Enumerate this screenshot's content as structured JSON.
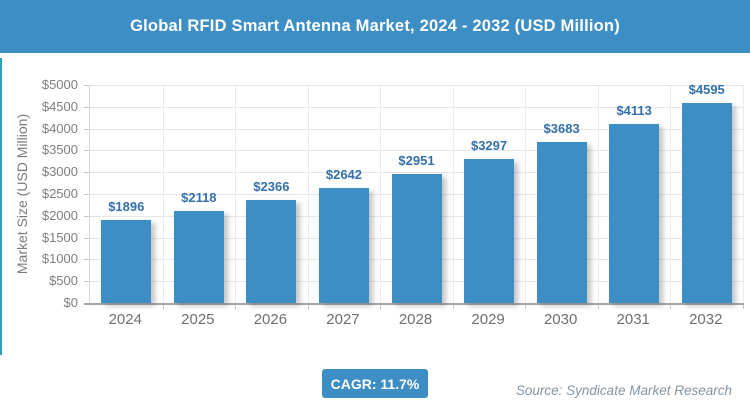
{
  "header": {
    "title": "Global RFID Smart Antenna Market, 2024 - 2032 (USD Million)"
  },
  "chart_data": {
    "type": "bar",
    "title": "Global RFID Smart Antenna Market, 2024 - 2032 (USD Million)",
    "categories": [
      "2024",
      "2025",
      "2026",
      "2027",
      "2028",
      "2029",
      "2030",
      "2031",
      "2032"
    ],
    "values": [
      1896,
      2118,
      2366,
      2642,
      2951,
      3297,
      3683,
      4113,
      4595
    ],
    "value_labels": [
      "$1896",
      "$2118",
      "$2366",
      "$2642",
      "$2951",
      "$3297",
      "$3683",
      "$4113",
      "$4595"
    ],
    "xlabel": "",
    "ylabel": "Market Size (USD Million)",
    "ylim": [
      0,
      5000
    ],
    "ytick_step": 500,
    "ytick_prefix": "$",
    "grid": true,
    "legend": false
  },
  "footer": {
    "cagr_label": "CAGR: 11.7%",
    "source": "Source: Syndicate Market Research"
  },
  "colors": {
    "title_bar_bg": "#3D8EC5",
    "bar_fill": "#3E8EC6",
    "bar_label_text": "#3470AC",
    "badge_bg": "#3D8EC5",
    "accent_stripe": "#2AA0B5",
    "axis_text": "#7f7f7f",
    "source_text": "#8494A2"
  }
}
